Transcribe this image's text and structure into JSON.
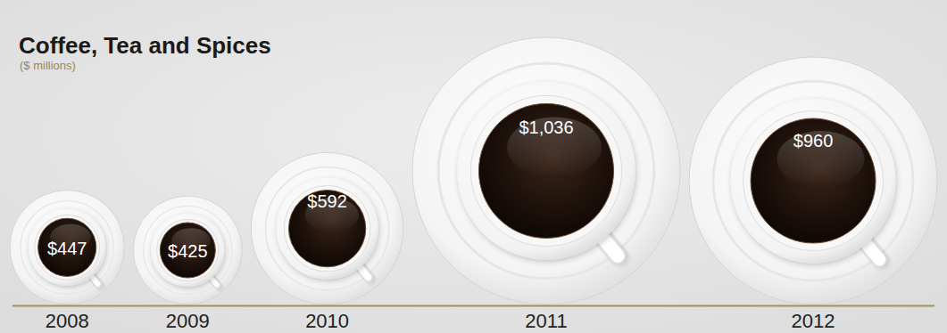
{
  "chart_data": {
    "type": "bubble",
    "title": "Coffee, Tea and Spices",
    "subtitle": "($ millions)",
    "categories": [
      "2008",
      "2009",
      "2010",
      "2011",
      "2012"
    ],
    "values": [
      447,
      425,
      592,
      1036,
      960
    ],
    "value_labels": [
      "$447",
      "$425",
      "$592",
      "$1,036",
      "$960"
    ],
    "data_labels": true,
    "tick_labels": "x"
  }
}
